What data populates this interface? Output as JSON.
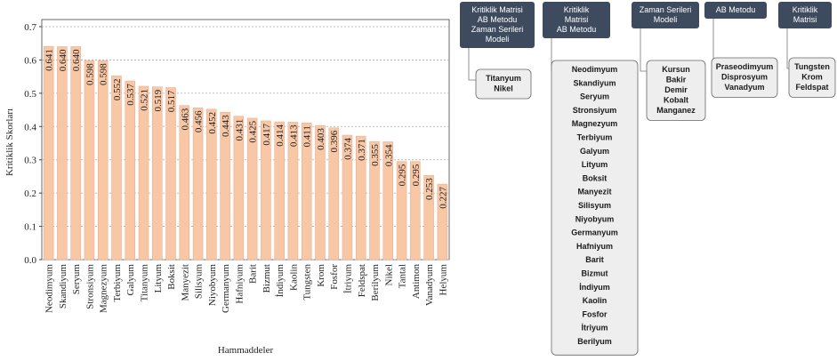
{
  "chart_data": {
    "type": "bar",
    "ylabel": "Kritiklik Skorları",
    "xlabel": "Hammaddeler",
    "categories": [
      "Neodimyum",
      "Skandiyum",
      "Seryum",
      "Stronsiyum",
      "Magnezyum",
      "Terbiyum",
      "Galyum",
      "Titanyum",
      "Lityum",
      "Boksit",
      "Manyezit",
      "Silisyum",
      "Niyobyum",
      "Germanyum",
      "Hafniyum",
      "Barit",
      "Bizmut",
      "İndiyum",
      "Kaolin",
      "Tungsten",
      "Krom",
      "Fosfor",
      "İtriyum",
      "Feldspat",
      "Berilyum",
      "Nikel",
      "Tantal",
      "Antimon",
      "Vanadyum",
      "Helyum"
    ],
    "values": [
      0.641,
      0.64,
      0.64,
      0.598,
      0.598,
      0.552,
      0.537,
      0.521,
      0.519,
      0.517,
      0.463,
      0.456,
      0.452,
      0.443,
      0.431,
      0.425,
      0.417,
      0.414,
      0.413,
      0.411,
      0.403,
      0.396,
      0.374,
      0.371,
      0.355,
      0.354,
      0.295,
      0.295,
      0.253,
      0.227
    ],
    "value_labels": [
      "0.641",
      "0.640",
      "0.640",
      "0.598",
      "0.598",
      "0.552",
      "0.537",
      "0.521",
      "0.519",
      "0.517",
      "0.463",
      "0.456",
      "0.452",
      "0.443",
      "0.431",
      "0.425",
      "0.417",
      "0.414",
      "0.413",
      "0.411",
      "0.403",
      "0.396",
      "0.374",
      "0.371",
      "0.355",
      "0.354",
      "0.295",
      "0.295",
      "0.253",
      "0.227"
    ],
    "color": "#f7c7a6",
    "ylim": [
      0,
      0.7
    ],
    "yticks": [
      {
        "value": 0,
        "label": "0.0"
      },
      0.1,
      0.2,
      0.3,
      0.4,
      0.5,
      0.6,
      0.7
    ],
    "grid": true
  },
  "diagram": {
    "groups": [
      {
        "header": [
          "Kritiklik Matrisi",
          "AB Metodu",
          "Zaman Serileri",
          "Modeli"
        ],
        "items": [
          "Titanyum",
          "Nikel"
        ]
      },
      {
        "header": [
          "Kritiklik",
          "Matrisi",
          "AB Metodu"
        ],
        "items": [
          "Neodimyum",
          "Skandiyum",
          "Seryum",
          "Stronsiyum",
          "Magnezyum",
          "Terbiyum",
          "Galyum",
          "Lityum",
          "Boksit",
          "Manyezit",
          "Silisyum",
          "Niyobyum",
          "Germanyum",
          "Hafniyum",
          "Barit",
          "Bizmut",
          "İndiyum",
          "Kaolin",
          "Fosfor",
          "İtriyum",
          "Berilyum"
        ]
      },
      {
        "header": [
          "Zaman Serileri",
          "Modeli"
        ],
        "items": [
          "Kursun",
          "Bakir",
          "Demir",
          "Kobalt",
          "Manganez"
        ]
      },
      {
        "header": [
          "AB Metodu"
        ],
        "items": [
          "Praseodimyum",
          "Disprosyum",
          "Vanadyum"
        ]
      },
      {
        "header": [
          "Kritiklik",
          "Matrisi"
        ],
        "items": [
          "Tungsten",
          "Krom",
          "Feldspat"
        ]
      }
    ]
  }
}
